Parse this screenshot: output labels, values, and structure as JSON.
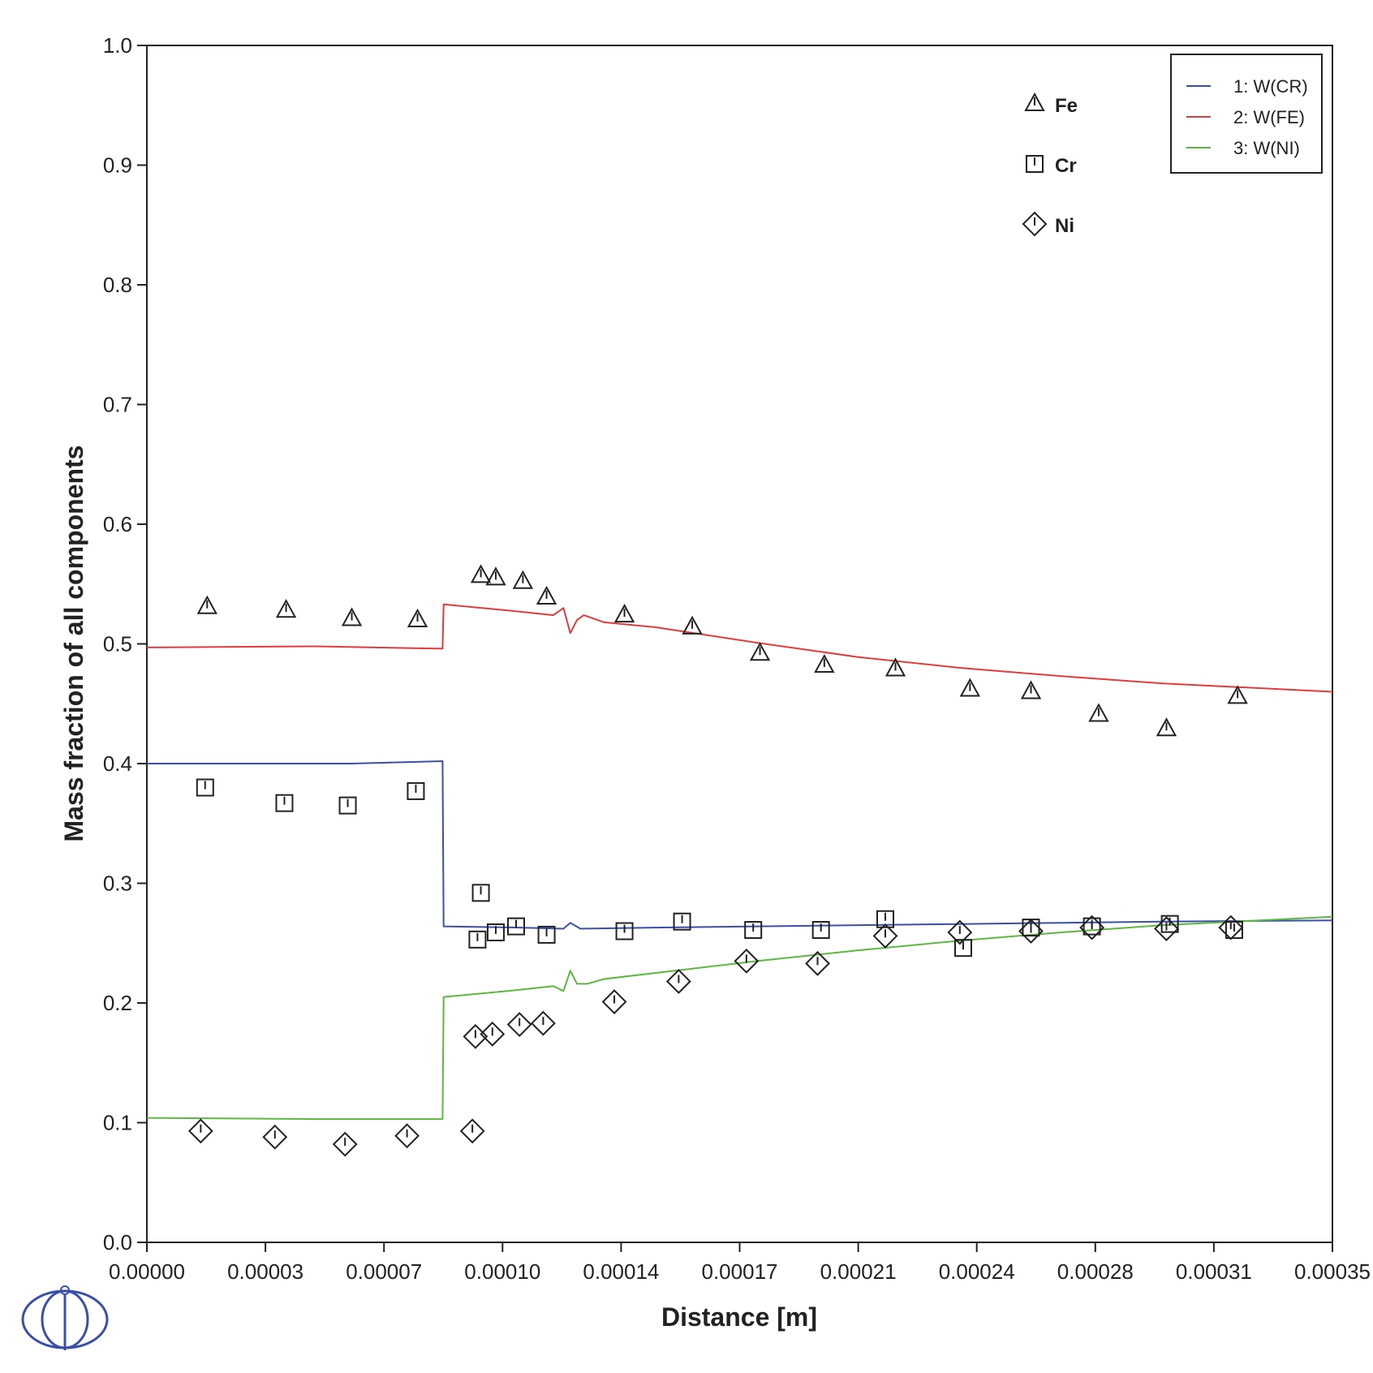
{
  "chart_data": {
    "type": "line",
    "xlabel": "Distance [m]",
    "ylabel": "Mass fraction of all components",
    "xlim": [
      0,
      0.00035
    ],
    "ylim": [
      0,
      1.0
    ],
    "x_ticks": [
      0,
      3.5e-05,
      7e-05,
      0.000105,
      0.00014,
      0.000175,
      0.00021,
      0.000245,
      0.00028,
      0.000315,
      0.00035
    ],
    "x_tick_labels": [
      "0.00000",
      "0.00003",
      "0.00007",
      "0.00010",
      "0.00014",
      "0.00017",
      "0.00021",
      "0.00024",
      "0.00028",
      "0.00031",
      "0.00035"
    ],
    "y_ticks": [
      0,
      0.1,
      0.2,
      0.3,
      0.4,
      0.5,
      0.6,
      0.7,
      0.8,
      0.9,
      1.0
    ],
    "y_tick_labels": [
      "0.0",
      "0.1",
      "0.2",
      "0.3",
      "0.4",
      "0.5",
      "0.6",
      "0.7",
      "0.8",
      "0.9",
      "1.0"
    ],
    "grid": false,
    "legend_position": "top-right",
    "series": [
      {
        "name": "W(CR)",
        "legend_label": "1: W(CR)",
        "color": "#3a4fa8",
        "points": [
          [
            0,
            0.4
          ],
          [
            3e-05,
            0.4
          ],
          [
            6e-05,
            0.4
          ],
          [
            8.73e-05,
            0.402
          ],
          [
            8.76e-05,
            0.264
          ],
          [
            0.00011,
            0.263
          ],
          [
            0.000123,
            0.262
          ],
          [
            0.000125,
            0.267
          ],
          [
            0.000128,
            0.262
          ],
          [
            0.00015,
            0.263
          ],
          [
            0.00018,
            0.264
          ],
          [
            0.00021,
            0.265
          ],
          [
            0.00024,
            0.266
          ],
          [
            0.00027,
            0.267
          ],
          [
            0.0003,
            0.268
          ],
          [
            0.00035,
            0.269
          ]
        ]
      },
      {
        "name": "W(FE)",
        "legend_label": "2: W(FE)",
        "color": "#e03c3c",
        "points": [
          [
            0,
            0.497
          ],
          [
            5e-05,
            0.498
          ],
          [
            8.73e-05,
            0.496
          ],
          [
            8.76e-05,
            0.533
          ],
          [
            0.00011,
            0.527
          ],
          [
            0.00012,
            0.524
          ],
          [
            0.000123,
            0.53
          ],
          [
            0.000125,
            0.509
          ],
          [
            0.000127,
            0.52
          ],
          [
            0.000129,
            0.524
          ],
          [
            0.000135,
            0.518
          ],
          [
            0.00015,
            0.514
          ],
          [
            0.00018,
            0.501
          ],
          [
            0.00021,
            0.489
          ],
          [
            0.00024,
            0.48
          ],
          [
            0.00027,
            0.473
          ],
          [
            0.0003,
            0.467
          ],
          [
            0.00035,
            0.46
          ]
        ]
      },
      {
        "name": "W(NI)",
        "legend_label": "3: W(NI)",
        "color": "#5cb840",
        "points": [
          [
            0,
            0.104
          ],
          [
            5e-05,
            0.103
          ],
          [
            8.73e-05,
            0.103
          ],
          [
            8.76e-05,
            0.205
          ],
          [
            0.00011,
            0.211
          ],
          [
            0.00012,
            0.214
          ],
          [
            0.000123,
            0.21
          ],
          [
            0.000125,
            0.227
          ],
          [
            0.000127,
            0.216
          ],
          [
            0.00013,
            0.216
          ],
          [
            0.000135,
            0.22
          ],
          [
            0.00015,
            0.225
          ],
          [
            0.00018,
            0.235
          ],
          [
            0.00021,
            0.244
          ],
          [
            0.00024,
            0.252
          ],
          [
            0.00027,
            0.259
          ],
          [
            0.0003,
            0.265
          ],
          [
            0.00035,
            0.272
          ]
        ]
      }
    ],
    "markers": [
      {
        "name": "Fe",
        "symbol": "triangle",
        "points": [
          [
            1.78e-05,
            0.531
          ],
          [
            4.11e-05,
            0.528
          ],
          [
            6.05e-05,
            0.521
          ],
          [
            7.99e-05,
            0.52
          ],
          [
            9.86e-05,
            0.557
          ],
          [
            0.000103,
            0.555
          ],
          [
            0.000111,
            0.552
          ],
          [
            0.000118,
            0.539
          ],
          [
            0.000141,
            0.524
          ],
          [
            0.000161,
            0.514
          ],
          [
            0.000181,
            0.492
          ],
          [
            0.0002,
            0.482
          ],
          [
            0.000221,
            0.479
          ],
          [
            0.000243,
            0.462
          ],
          [
            0.000261,
            0.46
          ],
          [
            0.000281,
            0.441
          ],
          [
            0.000301,
            0.429
          ],
          [
            0.000322,
            0.456
          ]
        ]
      },
      {
        "name": "Cr",
        "symbol": "square",
        "points": [
          [
            1.72e-05,
            0.38
          ],
          [
            4.06e-05,
            0.367
          ],
          [
            5.93e-05,
            0.365
          ],
          [
            7.94e-05,
            0.377
          ],
          [
            9.86e-05,
            0.292
          ],
          [
            9.76e-05,
            0.253
          ],
          [
            0.000103,
            0.259
          ],
          [
            0.000109,
            0.264
          ],
          [
            0.000118,
            0.257
          ],
          [
            0.000141,
            0.26
          ],
          [
            0.000158,
            0.268
          ],
          [
            0.000179,
            0.261
          ],
          [
            0.000199,
            0.261
          ],
          [
            0.000218,
            0.27
          ],
          [
            0.000241,
            0.246
          ],
          [
            0.000261,
            0.263
          ],
          [
            0.000279,
            0.264
          ],
          [
            0.000302,
            0.266
          ],
          [
            0.000321,
            0.261
          ]
        ]
      },
      {
        "name": "Ni",
        "symbol": "diamond",
        "points": [
          [
            1.59e-05,
            0.093
          ],
          [
            3.78e-05,
            0.088
          ],
          [
            5.85e-05,
            0.082
          ],
          [
            7.68e-05,
            0.089
          ],
          [
            9.61e-05,
            0.093
          ],
          [
            9.7e-05,
            0.172
          ],
          [
            0.000102,
            0.174
          ],
          [
            0.00011,
            0.182
          ],
          [
            0.000117,
            0.183
          ],
          [
            0.000138,
            0.201
          ],
          [
            0.000157,
            0.218
          ],
          [
            0.000177,
            0.235
          ],
          [
            0.000198,
            0.233
          ],
          [
            0.000218,
            0.256
          ],
          [
            0.00024,
            0.259
          ],
          [
            0.000261,
            0.26
          ],
          [
            0.000279,
            0.263
          ],
          [
            0.000301,
            0.262
          ],
          [
            0.00032,
            0.263
          ]
        ]
      }
    ]
  }
}
